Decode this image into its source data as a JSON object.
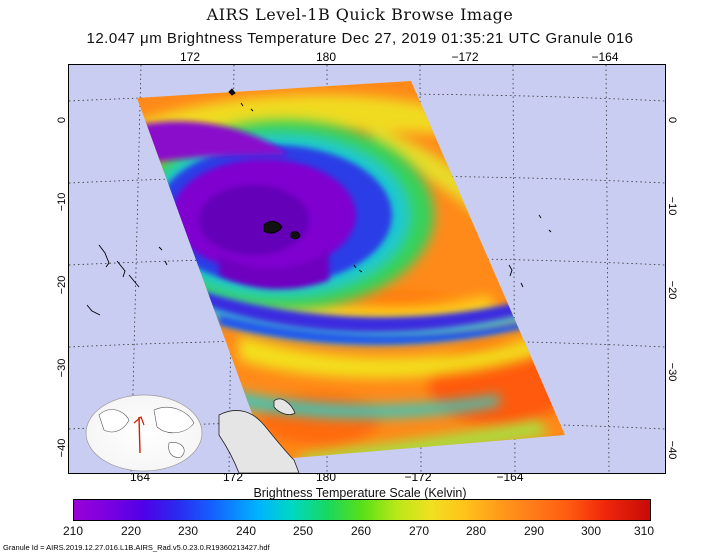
{
  "header": {
    "title": "AIRS Level-1B Quick Browse Image",
    "subtitle": "12.047 μm Brightness Temperature    Dec 27, 2019 01:35:21 UTC   Granule 016"
  },
  "map": {
    "lon_ticks_top": [
      "172",
      "180",
      "−172",
      "−164"
    ],
    "lon_ticks_bottom": [
      "164",
      "172",
      "180",
      "−172",
      "−164"
    ],
    "lat_ticks_left": [
      "0",
      "−10",
      "−20",
      "−30",
      "−40"
    ],
    "lat_ticks_right": [
      "0",
      "−10",
      "−20",
      "−30",
      "−40"
    ],
    "colors": {
      "ocean": "#c9cdf1",
      "land": "#e5e5e5",
      "cold": "#7a00c8",
      "warm": "#ff8a1a"
    }
  },
  "colorbar": {
    "label": "Brightness Temperature Scale (Kelvin)",
    "ticks": [
      "210",
      "220",
      "230",
      "240",
      "250",
      "260",
      "270",
      "280",
      "290",
      "300",
      "310"
    ],
    "range": [
      210,
      310
    ]
  },
  "footer": {
    "granule_id": "Granule Id  =  AIRS.2019.12.27.016.L1B.AIRS_Rad.v5.0.23.0.R19360213427.hdf"
  }
}
